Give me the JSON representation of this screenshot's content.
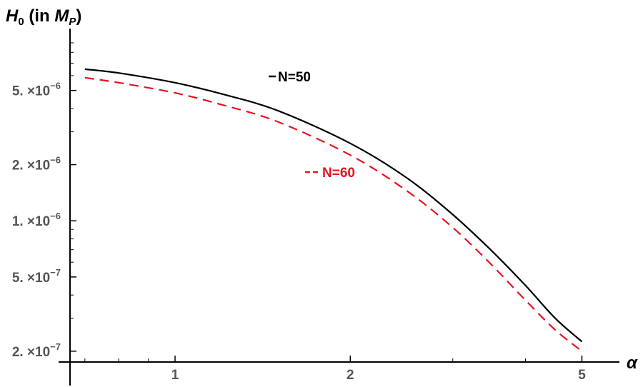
{
  "chart_data": {
    "type": "line",
    "xlabel": "α",
    "ylabel": {
      "main": "H",
      "sub": "0",
      "mid": " (in ",
      "unit": "M",
      "unit_sub": "P",
      "end": ")"
    },
    "x_scale": "log",
    "y_scale": "log",
    "xlim": [
      0.66,
      5.8
    ],
    "ylim": [
      1.75e-07,
      1e-05
    ],
    "x_ticks": [
      {
        "value": 1,
        "label": "1"
      },
      {
        "value": 2,
        "label": "2"
      },
      {
        "value": 5,
        "label": "5"
      }
    ],
    "y_ticks": [
      {
        "value": 5e-06,
        "mantissa": "5.",
        "base": "×10",
        "exp": "−6"
      },
      {
        "value": 2e-06,
        "mantissa": "2.",
        "base": "×10",
        "exp": "−6"
      },
      {
        "value": 1e-06,
        "mantissa": "1.",
        "base": "×10",
        "exp": "−6"
      },
      {
        "value": 5e-07,
        "mantissa": "5.",
        "base": "×10",
        "exp": "−7"
      },
      {
        "value": 2e-07,
        "mantissa": "2.",
        "base": "×10",
        "exp": "−7"
      }
    ],
    "grid": false,
    "series": [
      {
        "name": "N=50",
        "legend_label": "N=50",
        "color": "#000000",
        "dash": "solid",
        "x": [
          0.7,
          0.8,
          1.0,
          1.2,
          1.5,
          2.0,
          2.5,
          3.0,
          3.5,
          4.0,
          4.5,
          5.0
        ],
        "y": [
          6.5e-06,
          6.2e-06,
          5.5e-06,
          4.8e-06,
          3.9e-06,
          2.6e-06,
          1.7e-06,
          1.08e-06,
          6.9e-07,
          4.5e-07,
          3e-07,
          2.25e-07
        ]
      },
      {
        "name": "N=60",
        "legend_label": "N=60",
        "color": "#e8141e",
        "dash": "dashed",
        "x": [
          0.7,
          0.8,
          1.0,
          1.2,
          1.5,
          2.0,
          2.5,
          3.0,
          3.5,
          4.0,
          4.5,
          5.0
        ],
        "y": [
          5.85e-06,
          5.5e-06,
          4.85e-06,
          4.2e-06,
          3.4e-06,
          2.25e-06,
          1.45e-06,
          9.2e-07,
          5.8e-07,
          3.75e-07,
          2.6e-07,
          2e-07
        ]
      }
    ]
  }
}
